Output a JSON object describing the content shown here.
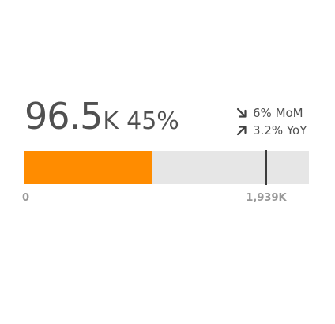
{
  "kpi": {
    "value": "96.5",
    "unit": "K",
    "percent": "45%",
    "progress_fraction": 0.45,
    "target_fraction": 0.85,
    "colors": {
      "fill": "#ff8c00",
      "track": "#e6e6e6",
      "target": "#3d3d3d",
      "text": "#505050",
      "axis_text": "#999999"
    }
  },
  "changes": [
    {
      "icon": "arrow-down-right-icon",
      "label": "6% MoM"
    },
    {
      "icon": "arrow-up-right-icon",
      "label": "3.2% YoY"
    }
  ],
  "axis": {
    "min_label": "0",
    "target_label": "1,939K"
  }
}
